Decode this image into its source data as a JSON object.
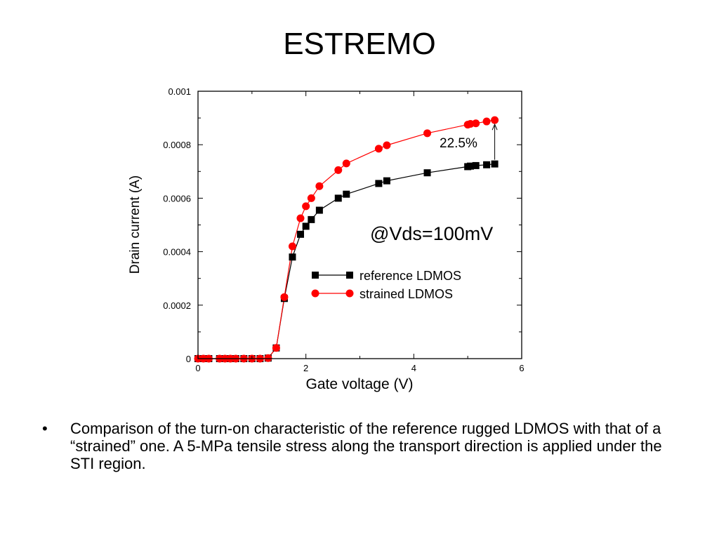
{
  "slide": {
    "title": "ESTREMO",
    "bullet_marker": "•",
    "bullet": "Comparison of the turn-on characteristic of the reference rugged LDMOS with that of a “strained” one. A 5-MPa tensile stress along the transport direction is applied under the STI region."
  },
  "chart_data": {
    "type": "line",
    "xlabel": "Gate voltage (V)",
    "ylabel": "Drain current (A)",
    "xlim": [
      0,
      6
    ],
    "ylim": [
      0,
      0.001
    ],
    "x_ticks": [
      "0",
      "2",
      "4",
      "6"
    ],
    "y_ticks": [
      "0",
      "0.0002",
      "0.0004",
      "0.0006",
      "0.0008",
      "0.001"
    ],
    "grid": false,
    "legend_position": "center-right",
    "annotations": [
      "@Vds=100mV",
      "22.5%"
    ],
    "series": [
      {
        "name": "reference LDMOS",
        "marker": "square",
        "color": "#000000",
        "x": [
          0,
          0.1,
          0.2,
          0.4,
          0.5,
          0.6,
          0.7,
          0.85,
          1.0,
          1.15,
          1.3,
          1.45,
          1.6,
          1.75,
          1.9,
          2.0,
          2.1,
          2.25,
          2.6,
          2.75,
          3.35,
          3.5,
          4.25,
          5.0,
          5.05,
          5.15,
          5.35,
          5.5
        ],
        "y": [
          0,
          0,
          0,
          0,
          0,
          0,
          0,
          0,
          0,
          0,
          2e-06,
          4e-05,
          0.000225,
          0.00038,
          0.000465,
          0.000495,
          0.00052,
          0.000555,
          0.0006,
          0.000615,
          0.000655,
          0.000665,
          0.000695,
          0.000718,
          0.00072,
          0.000722,
          0.000725,
          0.000728
        ]
      },
      {
        "name": "strained LDMOS",
        "marker": "circle",
        "color": "#ff0000",
        "x": [
          0,
          0.1,
          0.2,
          0.4,
          0.5,
          0.6,
          0.7,
          0.85,
          1.0,
          1.15,
          1.3,
          1.45,
          1.6,
          1.75,
          1.9,
          2.0,
          2.1,
          2.25,
          2.6,
          2.75,
          3.35,
          3.5,
          4.25,
          5.0,
          5.05,
          5.15,
          5.35,
          5.5
        ],
        "y": [
          0,
          0,
          0,
          0,
          0,
          0,
          0,
          0,
          0,
          0,
          2e-06,
          4e-05,
          0.00023,
          0.00042,
          0.000525,
          0.00057,
          0.0006,
          0.000645,
          0.000705,
          0.00073,
          0.000785,
          0.000798,
          0.000843,
          0.000875,
          0.000878,
          0.00088,
          0.000887,
          0.000892
        ]
      }
    ]
  }
}
